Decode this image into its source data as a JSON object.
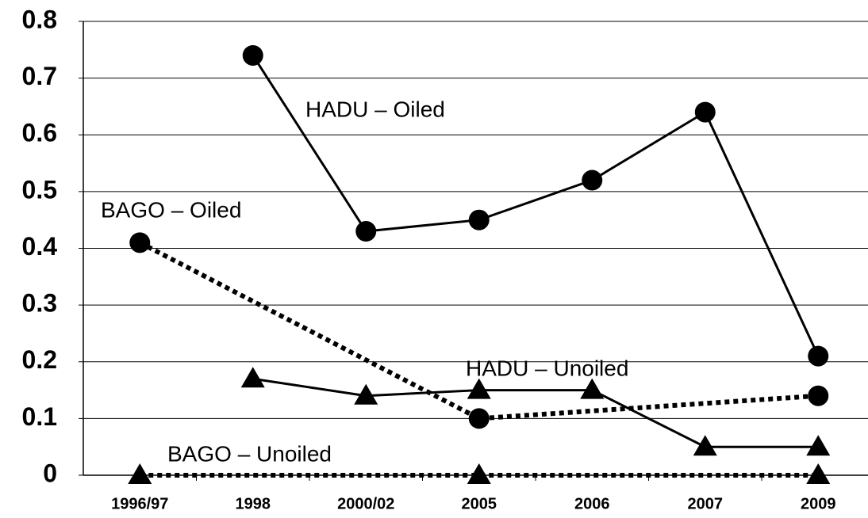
{
  "chart_data": {
    "type": "line",
    "categories": [
      "1996/97",
      "1998",
      "2000/02",
      "2005",
      "2006",
      "2007",
      "2009"
    ],
    "ylim": [
      0,
      0.8
    ],
    "yticks": [
      0,
      0.1,
      0.2,
      0.3,
      0.4,
      0.5,
      0.6,
      0.7,
      0.8
    ],
    "grid": true,
    "series": [
      {
        "name": "HADU – Oiled",
        "color": "#000000",
        "dash": "solid",
        "marker": "circle",
        "x": [
          "1998",
          "2000/02",
          "2005",
          "2006",
          "2007",
          "2009"
        ],
        "values": [
          0.74,
          0.43,
          0.45,
          0.52,
          0.64,
          0.21
        ]
      },
      {
        "name": "BAGO – Oiled",
        "color": "#000000",
        "dash": "dotted",
        "marker": "circle",
        "x": [
          "1996/97",
          "2005",
          "2009"
        ],
        "values": [
          0.41,
          0.1,
          0.14
        ]
      },
      {
        "name": "HADU – Unoiled",
        "color": "#000000",
        "dash": "solid",
        "marker": "triangle",
        "x": [
          "1998",
          "2000/02",
          "2005",
          "2006",
          "2007",
          "2009"
        ],
        "values": [
          0.17,
          0.14,
          0.15,
          0.15,
          0.05,
          0.05
        ]
      },
      {
        "name": "BAGO – Unoiled",
        "color": "#000000",
        "dash": "dotted",
        "marker": "triangle",
        "x": [
          "1996/97",
          "2005",
          "2009"
        ],
        "values": [
          0,
          0,
          0
        ]
      }
    ]
  }
}
